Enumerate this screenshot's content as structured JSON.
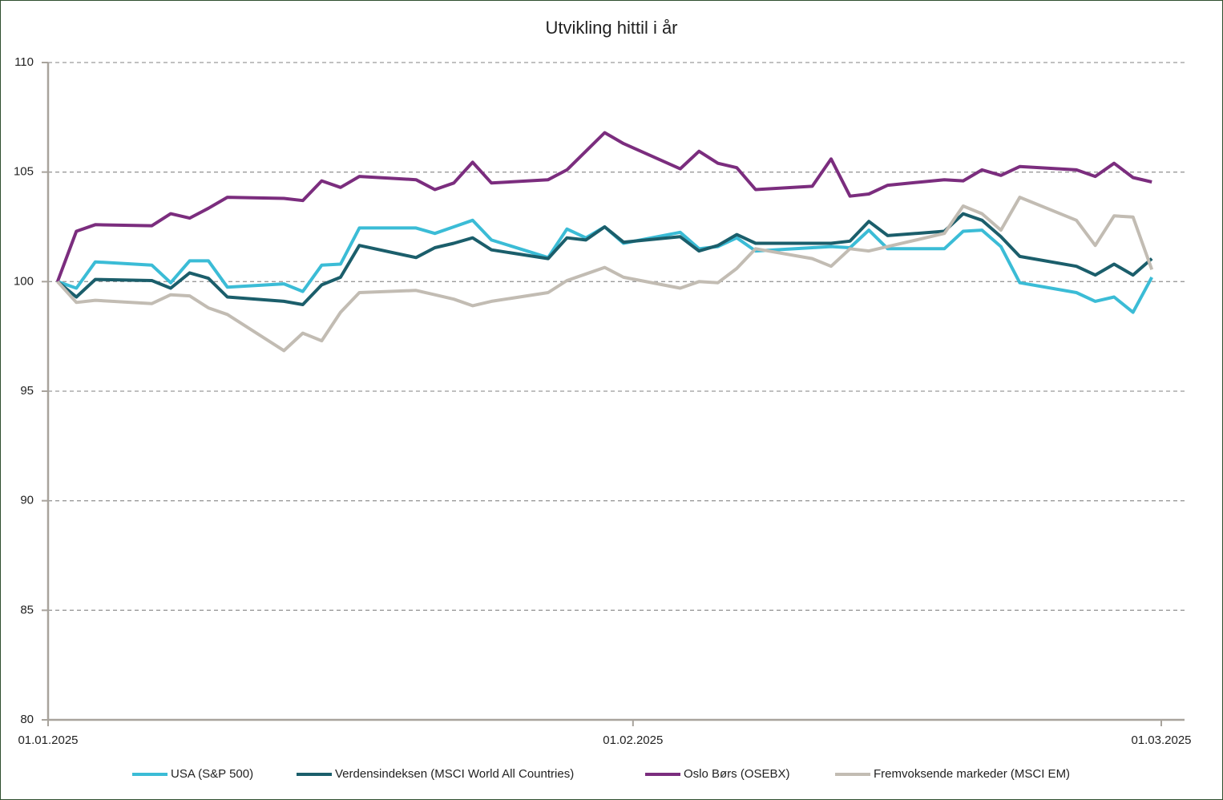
{
  "chart_data": {
    "type": "line",
    "title": "Utvikling hittil i år",
    "x": [
      "2025-01-01",
      "2025-01-02",
      "2025-01-03",
      "2025-01-06",
      "2025-01-07",
      "2025-01-08",
      "2025-01-09",
      "2025-01-10",
      "2025-01-13",
      "2025-01-14",
      "2025-01-15",
      "2025-01-16",
      "2025-01-17",
      "2025-01-20",
      "2025-01-21",
      "2025-01-22",
      "2025-01-23",
      "2025-01-24",
      "2025-01-27",
      "2025-01-28",
      "2025-01-29",
      "2025-01-30",
      "2025-01-31",
      "2025-02-03",
      "2025-02-04",
      "2025-02-05",
      "2025-02-06",
      "2025-02-07",
      "2025-02-10",
      "2025-02-11",
      "2025-02-12",
      "2025-02-13",
      "2025-02-14",
      "2025-02-17",
      "2025-02-18",
      "2025-02-19",
      "2025-02-20",
      "2025-02-21",
      "2025-02-24",
      "2025-02-25",
      "2025-02-26",
      "2025-02-27",
      "2025-02-28"
    ],
    "series": [
      {
        "name": "USA (S&P 500)",
        "color": "#3bbcd6",
        "values": [
          100,
          99.7,
          100.9,
          100.75,
          99.95,
          100.95,
          100.95,
          99.75,
          99.9,
          99.55,
          100.75,
          100.8,
          102.45,
          102.45,
          102.2,
          102.5,
          102.8,
          101.9,
          101.1,
          102.4,
          102.0,
          102.5,
          101.75,
          102.25,
          101.5,
          101.6,
          102.0,
          101.4,
          101.55,
          101.6,
          101.55,
          102.35,
          101.5,
          101.5,
          102.3,
          102.35,
          101.6,
          99.95,
          99.5,
          99.1,
          99.3,
          98.6,
          100.2
        ]
      },
      {
        "name": "Verdensindeksen (MSCI World All Countries)",
        "color": "#1b5e6b",
        "values": [
          100,
          99.3,
          100.1,
          100.05,
          99.7,
          100.4,
          100.15,
          99.3,
          99.1,
          98.95,
          99.85,
          100.2,
          101.65,
          101.1,
          101.55,
          101.75,
          102.0,
          101.45,
          101.05,
          102.0,
          101.9,
          102.5,
          101.8,
          102.05,
          101.4,
          101.65,
          102.15,
          101.75,
          101.75,
          101.75,
          101.85,
          102.75,
          102.1,
          102.3,
          103.1,
          102.8,
          102.05,
          101.15,
          100.7,
          100.3,
          100.8,
          100.3,
          101.05
        ]
      },
      {
        "name": "Oslo Børs (OSEBX)",
        "color": "#7b2d7e",
        "values": [
          100,
          102.3,
          102.6,
          102.55,
          103.1,
          102.9,
          103.35,
          103.85,
          103.8,
          103.7,
          104.6,
          104.3,
          104.8,
          104.65,
          104.2,
          104.5,
          105.45,
          104.5,
          104.65,
          105.1,
          105.95,
          106.8,
          106.3,
          105.15,
          105.95,
          105.4,
          105.2,
          104.2,
          104.35,
          105.6,
          103.9,
          104.0,
          104.4,
          104.65,
          104.6,
          105.1,
          104.85,
          105.25,
          105.1,
          104.8,
          105.4,
          104.75,
          104.55
        ]
      },
      {
        "name": "Fremvoksende markeder (MSCI EM)",
        "color": "#c2bcb3",
        "values": [
          100,
          99.05,
          99.15,
          99.0,
          99.4,
          99.35,
          98.8,
          98.5,
          96.85,
          97.65,
          97.3,
          98.6,
          99.5,
          99.6,
          99.4,
          99.2,
          98.9,
          99.1,
          99.5,
          100.05,
          100.35,
          100.65,
          100.2,
          99.7,
          100.0,
          99.95,
          100.6,
          101.5,
          101.05,
          100.7,
          101.5,
          101.4,
          101.6,
          102.2,
          103.45,
          103.1,
          102.35,
          103.85,
          102.8,
          101.65,
          103.0,
          102.95,
          100.55
        ]
      }
    ],
    "xlim": [
      "2025-01-01",
      "2025-03-01"
    ],
    "xticks": [
      {
        "value": "2025-01-01",
        "label": "01.01.2025"
      },
      {
        "value": "2025-02-01",
        "label": "01.02.2025"
      },
      {
        "value": "2025-03-01",
        "label": "01.03.2025"
      }
    ],
    "ylim": [
      80,
      110
    ],
    "yticks": [
      80,
      85,
      90,
      95,
      100,
      105,
      110
    ],
    "grid": true,
    "legend": "bottom"
  }
}
